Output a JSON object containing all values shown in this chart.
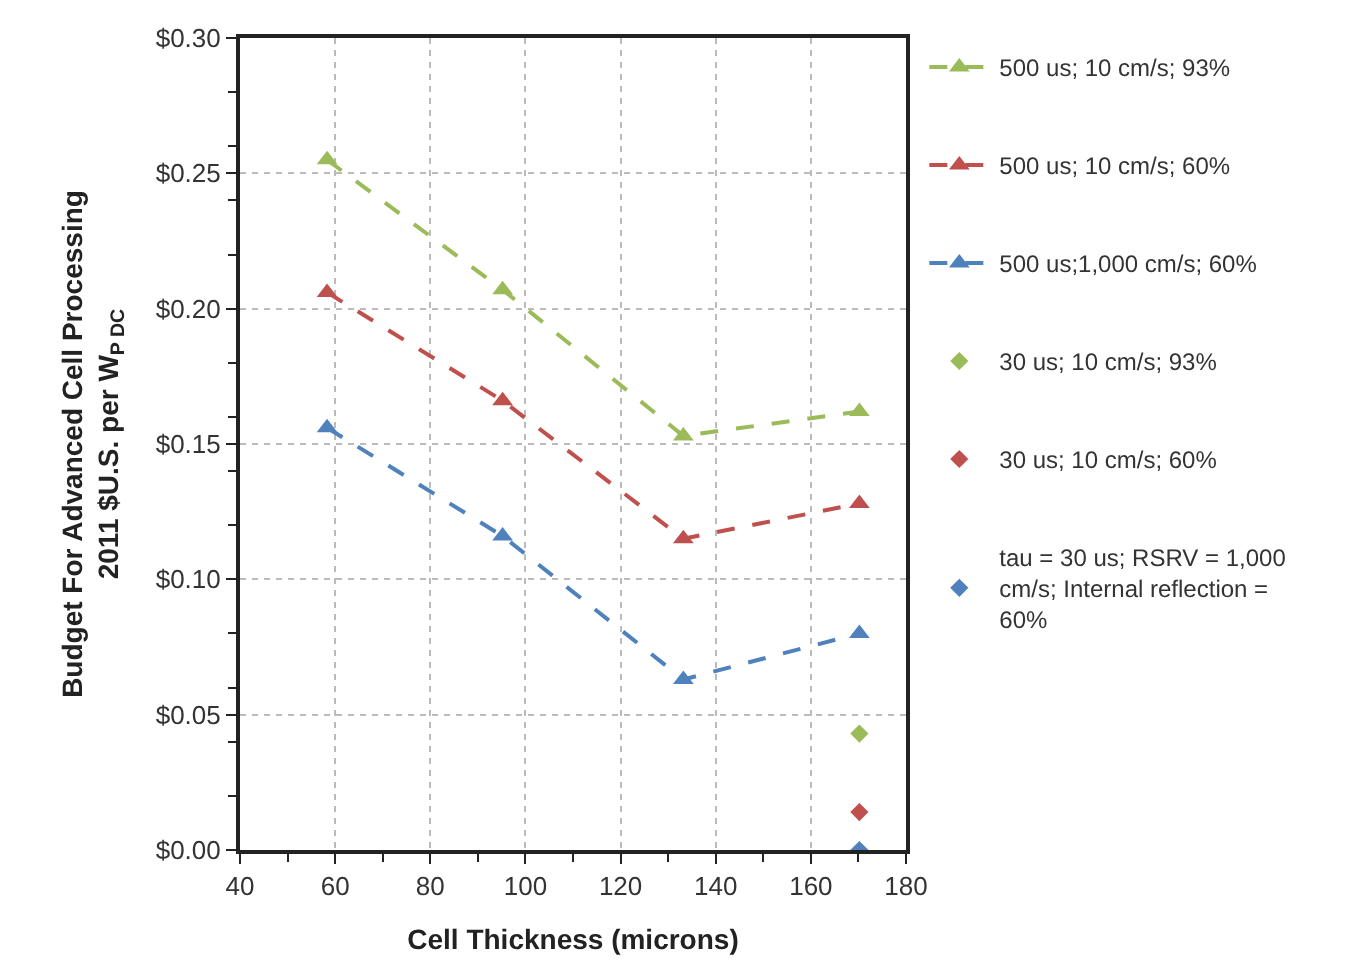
{
  "chart_data": {
    "type": "line",
    "xlabel": "Cell Thickness (microns)",
    "ylabel": "Budget For Advanced Cell Processing\n2011 $U.S. per W$_{P DC}$",
    "series": [
      {
        "name": "500 us; 10 cm/s; 93%",
        "color": "#9bbb59",
        "marker": "triangle",
        "line_style": "dashed",
        "x": [
          58.3,
          95.2,
          133.2,
          170.2
        ],
        "values": [
          0.255,
          0.207,
          0.153,
          0.162
        ]
      },
      {
        "name": "500 us; 10 cm/s; 60%",
        "color": "#c0504d",
        "marker": "triangle",
        "line_style": "dashed",
        "x": [
          58.3,
          95.2,
          133.2,
          170.2
        ],
        "values": [
          0.206,
          0.166,
          0.115,
          0.128
        ]
      },
      {
        "name": "500 us;1,000 cm/s; 60%",
        "color": "#4f81bd",
        "marker": "triangle",
        "line_style": "dashed",
        "x": [
          58.3,
          95.2,
          133.2,
          170.2
        ],
        "values": [
          0.156,
          0.116,
          0.063,
          0.08
        ]
      },
      {
        "name": "30 us; 10 cm/s; 93%",
        "type": "scatter",
        "color": "#9bbb59",
        "marker": "diamond",
        "x": [
          170.2
        ],
        "values": [
          0.043
        ]
      },
      {
        "name": "30 us; 10 cm/s; 60%",
        "type": "scatter",
        "color": "#c0504d",
        "marker": "diamond",
        "x": [
          170.2
        ],
        "values": [
          0.014
        ]
      },
      {
        "name": "tau = 30 us; RSRV = 1,000 cm/s; Internal reflection = 60%",
        "type": "scatter",
        "color": "#4f81bd",
        "marker": "diamond",
        "x": [
          170.2
        ],
        "values": [
          0.0
        ]
      }
    ],
    "xlim": [
      40,
      180
    ],
    "xticks": [
      40,
      60,
      80,
      100,
      120,
      140,
      160,
      180
    ],
    "ylim": [
      0,
      0.3
    ],
    "yticks": [
      {
        "value": 0,
        "label": "$0.00"
      },
      {
        "value": 0.05,
        "label": "$0.05"
      },
      {
        "value": 0.1,
        "label": "$0.10"
      },
      {
        "value": 0.15,
        "label": "$0.15"
      },
      {
        "value": 0.2,
        "label": "$0.20"
      },
      {
        "value": 0.25,
        "label": "$0.25"
      },
      {
        "value": 0.3,
        "label": "$0.30"
      }
    ],
    "grid": true,
    "legend": "right"
  }
}
